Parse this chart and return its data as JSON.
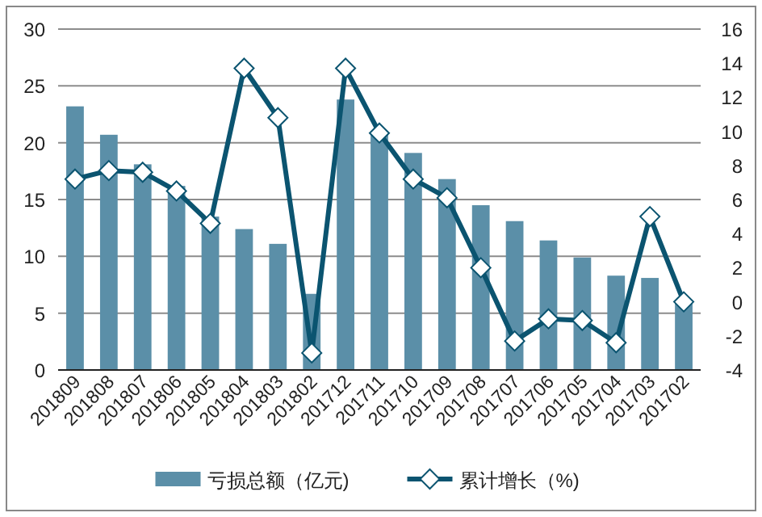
{
  "chart_data": {
    "type": "bar",
    "categories": [
      "201809",
      "201808",
      "201807",
      "201806",
      "201805",
      "201804",
      "201803",
      "201802",
      "201712",
      "201711",
      "201710",
      "201709",
      "201708",
      "201707",
      "201706",
      "201705",
      "201704",
      "201703",
      "201702"
    ],
    "series": [
      {
        "name": "亏损总额（亿元)",
        "color": "#5b8fa8",
        "values": [
          23.2,
          20.7,
          18.1,
          16.2,
          13.5,
          12.4,
          11.1,
          6.7,
          23.8,
          20.7,
          19.1,
          16.8,
          14.5,
          13.1,
          11.4,
          9.9,
          8.3,
          8.1,
          6
        ]
      },
      {
        "name": "累计增长（%)",
        "type": "line",
        "axis": "y2",
        "color": "#0b5470",
        "values": [
          7.2,
          7.7,
          7.6,
          6.5,
          4.6,
          13.7,
          10.8,
          -3,
          13.7,
          9.9,
          7.2,
          6.1,
          2,
          -2.3,
          -1,
          -1.1,
          -2.4,
          5,
          0
        ]
      }
    ],
    "ylim": [
      0,
      30
    ],
    "yticks": [
      0,
      5,
      10,
      15,
      20,
      25,
      30
    ],
    "y2lim": [
      -4,
      16
    ],
    "y2ticks": [
      -4,
      -2,
      0,
      2,
      4,
      6,
      8,
      10,
      12,
      14,
      16
    ],
    "grid": "y",
    "legend": "bottom",
    "marker": "diamond"
  }
}
